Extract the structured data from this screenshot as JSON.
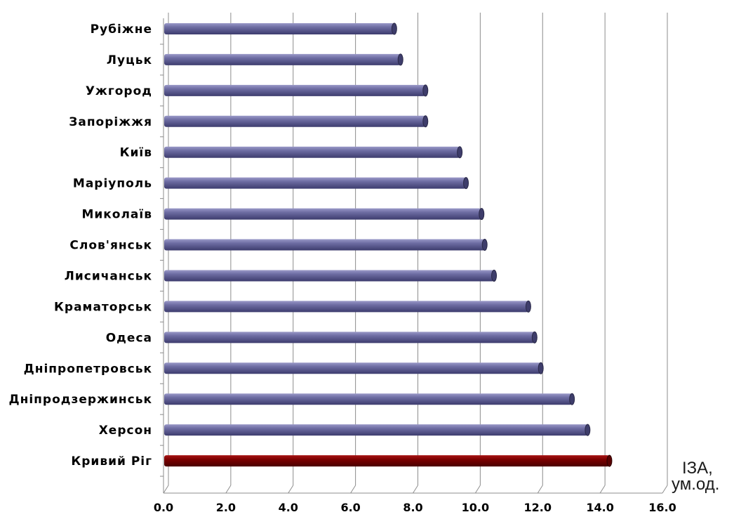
{
  "chart_data": {
    "type": "bar",
    "orientation": "horizontal",
    "categories": [
      "Рубіжне",
      "Луцьк",
      "Ужгород",
      "Запоріжжя",
      "Київ",
      "Маріуполь",
      "Миколаїв",
      "Слов'янськ",
      "Лисичанськ",
      "Краматорськ",
      "Одеса",
      "Дніпропетровськ",
      "Дніпродзержинськ",
      "Херсон",
      "Кривий Ріг"
    ],
    "values": [
      7.4,
      7.6,
      8.4,
      8.4,
      9.5,
      9.7,
      10.2,
      10.3,
      10.6,
      11.7,
      11.9,
      12.1,
      13.1,
      13.6,
      14.3
    ],
    "highlight_index": 14,
    "xlim": [
      0,
      16
    ],
    "xticks": [
      "0.0",
      "2.0",
      "4.0",
      "6.0",
      "8.0",
      "10.0",
      "12.0",
      "14.0",
      "16.0"
    ],
    "unit_label": [
      "ІЗА,",
      "ум.од."
    ],
    "grid": true,
    "colors": {
      "bar": "#5e5d92",
      "highlight": "#7a0000",
      "grid": "#8c8c8c"
    }
  }
}
